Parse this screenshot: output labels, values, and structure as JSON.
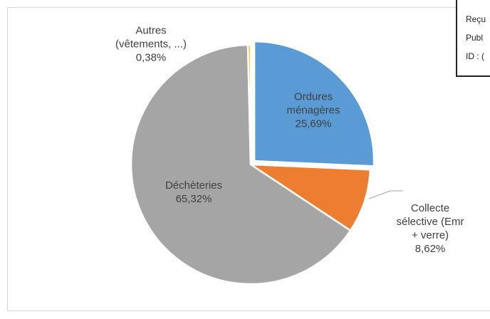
{
  "chart_data": {
    "type": "pie",
    "categories": [
      "Ordures ménagères",
      "Collecte sélective (Emr + verre)",
      "Déchèteries",
      "Autres (vêtements, ...)"
    ],
    "values": [
      25.69,
      8.62,
      65.32,
      0.38
    ],
    "value_labels": [
      "25,69%",
      "8,62%",
      "65,32%",
      "0,38%"
    ],
    "colors": [
      "#5b9bd5",
      "#ed7d31",
      "#a5a5a5",
      "#ffc000"
    ]
  },
  "stamp": {
    "lines": [
      "Reçu",
      "Publ",
      "ID : ("
    ]
  }
}
